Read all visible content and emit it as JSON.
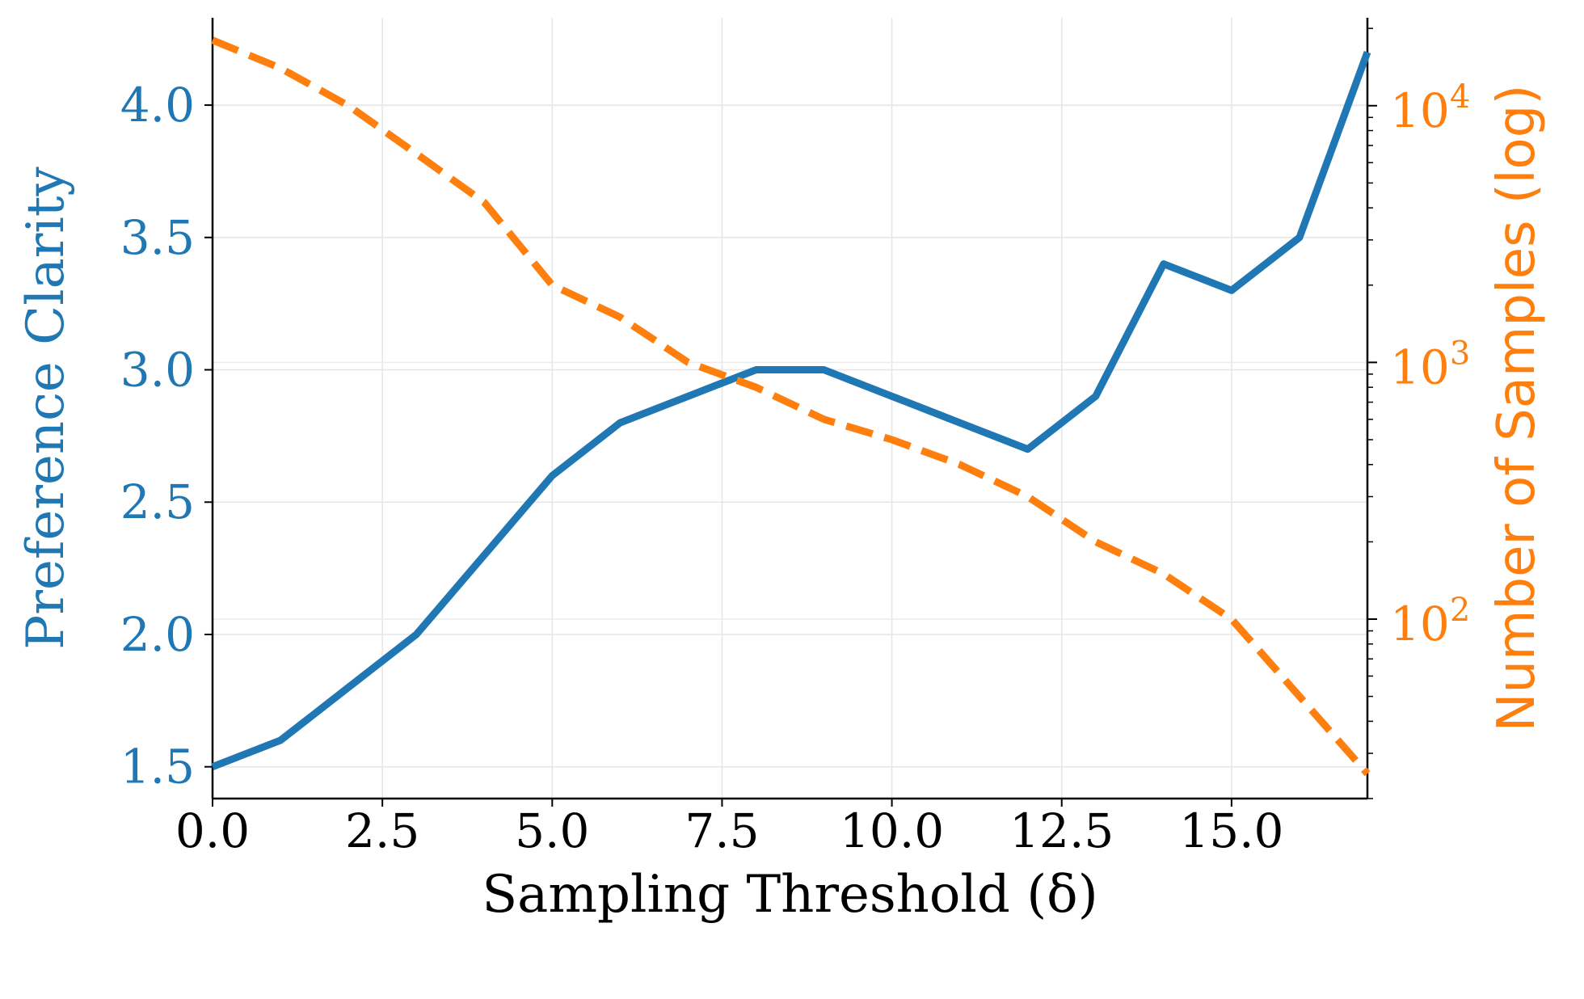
{
  "chart_data": {
    "type": "line",
    "xlabel": "Sampling Threshold (δ)",
    "ylabel_left": "Preference Clarity",
    "ylabel_right": "Number of Samples (log)",
    "xlim": [
      0,
      17
    ],
    "ylim_left": [
      1.38,
      4.33
    ],
    "ylim_right": [
      20,
      22000
    ],
    "right_scale": "log",
    "grid": true,
    "x_ticks": [
      0,
      2.5,
      5,
      7.5,
      10,
      12.5,
      15
    ],
    "x_tick_labels": [
      "0.0",
      "2.5",
      "5.0",
      "7.5",
      "10.0",
      "12.5",
      "15.0"
    ],
    "y_left_ticks": [
      1.5,
      2.0,
      2.5,
      3.0,
      3.5,
      4.0
    ],
    "y_left_tick_labels": [
      "1.5",
      "2.0",
      "2.5",
      "3.0",
      "3.5",
      "4.0"
    ],
    "y_right_ticks": [
      100,
      1000,
      10000
    ],
    "y_right_tick_labels": [
      {
        "base": "10",
        "exp": "2"
      },
      {
        "base": "10",
        "exp": "3"
      },
      {
        "base": "10",
        "exp": "4"
      }
    ],
    "x": [
      0,
      1,
      2,
      3,
      4,
      5,
      6,
      7,
      8,
      9,
      10,
      11,
      12,
      13,
      14,
      15,
      16,
      17
    ],
    "series": [
      {
        "axis": "left",
        "style": "solid",
        "color": "#1f77b4",
        "values": [
          1.5,
          1.6,
          1.8,
          2.0,
          2.3,
          2.6,
          2.8,
          2.9,
          3.0,
          3.0,
          2.9,
          2.8,
          2.7,
          2.9,
          3.4,
          3.3,
          3.5,
          4.2
        ]
      },
      {
        "axis": "right",
        "style": "dashed",
        "color": "#ff7f0e",
        "values": [
          18000,
          14000,
          10000,
          6500,
          4200,
          2000,
          1500,
          1000,
          800,
          600,
          500,
          400,
          300,
          200,
          150,
          100,
          50,
          25
        ]
      }
    ]
  }
}
